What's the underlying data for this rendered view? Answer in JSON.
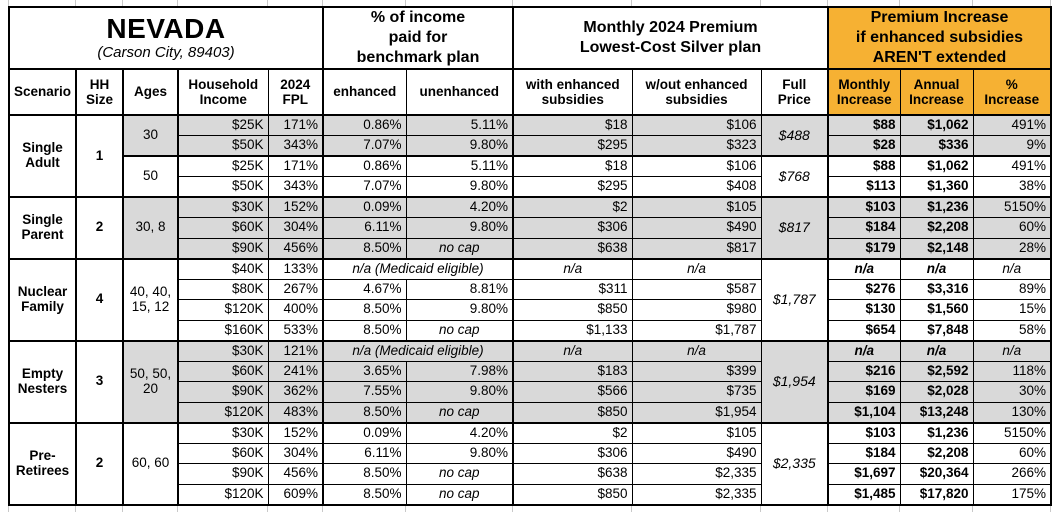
{
  "colors": {
    "accent_orange": "#F6B133",
    "shade_gray": "#D9D9D9"
  },
  "table": {
    "title": "NEVADA",
    "subtitle": "(Carson City, 89403)",
    "groups": {
      "income_pct": "% of income\npaid for\nbenchmark plan",
      "premium": "Monthly 2024 Premium\nLowest-Cost Silver plan",
      "increase": "Premium Increase\nif enhanced subsidies\nAREN'T extended"
    },
    "columns": {
      "scenario": "Scenario",
      "hh_size": "HH\nSize",
      "ages": "Ages",
      "income": "Household\nIncome",
      "fpl": "2024\nFPL",
      "enhanced": "enhanced",
      "unenhanced": "unenhanced",
      "with_sub": "with enhanced\nsubsidies",
      "wout_sub": "w/out enhanced\nsubsidies",
      "full_price": "Full\nPrice",
      "monthly": "Monthly\nIncrease",
      "annual": "Annual\nIncrease",
      "pct": "%\nIncrease"
    }
  },
  "scenarios": [
    {
      "name": "Single\nAdult",
      "hh": "1",
      "groups": [
        {
          "ages": "30",
          "full_price": "$488",
          "rows": [
            {
              "income": "$25K",
              "fpl": "171%",
              "enhanced": "0.86%",
              "unenhanced": "5.11%",
              "with_sub": "$18",
              "wout_sub": "$106",
              "monthly": "$88",
              "annual": "$1,062",
              "pct": "491%"
            },
            {
              "income": "$50K",
              "fpl": "343%",
              "enhanced": "7.07%",
              "unenhanced": "9.80%",
              "with_sub": "$295",
              "wout_sub": "$323",
              "monthly": "$28",
              "annual": "$336",
              "pct": "9%"
            }
          ]
        },
        {
          "ages": "50",
          "full_price": "$768",
          "rows": [
            {
              "income": "$25K",
              "fpl": "171%",
              "enhanced": "0.86%",
              "unenhanced": "5.11%",
              "with_sub": "$18",
              "wout_sub": "$106",
              "monthly": "$88",
              "annual": "$1,062",
              "pct": "491%"
            },
            {
              "income": "$50K",
              "fpl": "343%",
              "enhanced": "7.07%",
              "unenhanced": "9.80%",
              "with_sub": "$295",
              "wout_sub": "$408",
              "monthly": "$113",
              "annual": "$1,360",
              "pct": "38%"
            }
          ]
        }
      ]
    },
    {
      "name": "Single\nParent",
      "hh": "2",
      "groups": [
        {
          "ages": "30, 8",
          "full_price": "$817",
          "rows": [
            {
              "income": "$30K",
              "fpl": "152%",
              "enhanced": "0.09%",
              "unenhanced": "4.20%",
              "with_sub": "$2",
              "wout_sub": "$105",
              "monthly": "$103",
              "annual": "$1,236",
              "pct": "5150%"
            },
            {
              "income": "$60K",
              "fpl": "304%",
              "enhanced": "6.11%",
              "unenhanced": "9.80%",
              "with_sub": "$306",
              "wout_sub": "$490",
              "monthly": "$184",
              "annual": "$2,208",
              "pct": "60%"
            },
            {
              "income": "$90K",
              "fpl": "456%",
              "enhanced": "8.50%",
              "unenhanced": "no cap",
              "with_sub": "$638",
              "wout_sub": "$817",
              "monthly": "$179",
              "annual": "$2,148",
              "pct": "28%"
            }
          ]
        }
      ]
    },
    {
      "name": "Nuclear\nFamily",
      "hh": "4",
      "groups": [
        {
          "ages": "40, 40,\n15, 12",
          "full_price": "$1,787",
          "rows": [
            {
              "income": "$40K",
              "fpl": "133%",
              "medicaid": "n/a (Medicaid eligible)",
              "with_sub": "n/a",
              "wout_sub": "n/a",
              "monthly": "n/a",
              "annual": "n/a",
              "pct": "n/a"
            },
            {
              "income": "$80K",
              "fpl": "267%",
              "enhanced": "4.67%",
              "unenhanced": "8.81%",
              "with_sub": "$311",
              "wout_sub": "$587",
              "monthly": "$276",
              "annual": "$3,316",
              "pct": "89%"
            },
            {
              "income": "$120K",
              "fpl": "400%",
              "enhanced": "8.50%",
              "unenhanced": "9.80%",
              "with_sub": "$850",
              "wout_sub": "$980",
              "monthly": "$130",
              "annual": "$1,560",
              "pct": "15%"
            },
            {
              "income": "$160K",
              "fpl": "533%",
              "enhanced": "8.50%",
              "unenhanced": "no cap",
              "with_sub": "$1,133",
              "wout_sub": "$1,787",
              "monthly": "$654",
              "annual": "$7,848",
              "pct": "58%"
            }
          ]
        }
      ]
    },
    {
      "name": "Empty\nNesters",
      "hh": "3",
      "groups": [
        {
          "ages": "50, 50,\n20",
          "full_price": "$1,954",
          "rows": [
            {
              "income": "$30K",
              "fpl": "121%",
              "medicaid": "n/a (Medicaid eligible)",
              "with_sub": "n/a",
              "wout_sub": "n/a",
              "monthly": "n/a",
              "annual": "n/a",
              "pct": "n/a"
            },
            {
              "income": "$60K",
              "fpl": "241%",
              "enhanced": "3.65%",
              "unenhanced": "7.98%",
              "with_sub": "$183",
              "wout_sub": "$399",
              "monthly": "$216",
              "annual": "$2,592",
              "pct": "118%"
            },
            {
              "income": "$90K",
              "fpl": "362%",
              "enhanced": "7.55%",
              "unenhanced": "9.80%",
              "with_sub": "$566",
              "wout_sub": "$735",
              "monthly": "$169",
              "annual": "$2,028",
              "pct": "30%"
            },
            {
              "income": "$120K",
              "fpl": "483%",
              "enhanced": "8.50%",
              "unenhanced": "no cap",
              "with_sub": "$850",
              "wout_sub": "$1,954",
              "monthly": "$1,104",
              "annual": "$13,248",
              "pct": "130%"
            }
          ]
        }
      ]
    },
    {
      "name": "Pre-\nRetirees",
      "hh": "2",
      "groups": [
        {
          "ages": "60, 60",
          "full_price": "$2,335",
          "rows": [
            {
              "income": "$30K",
              "fpl": "152%",
              "enhanced": "0.09%",
              "unenhanced": "4.20%",
              "with_sub": "$2",
              "wout_sub": "$105",
              "monthly": "$103",
              "annual": "$1,236",
              "pct": "5150%"
            },
            {
              "income": "$60K",
              "fpl": "304%",
              "enhanced": "6.11%",
              "unenhanced": "9.80%",
              "with_sub": "$306",
              "wout_sub": "$490",
              "monthly": "$184",
              "annual": "$2,208",
              "pct": "60%"
            },
            {
              "income": "$90K",
              "fpl": "456%",
              "enhanced": "8.50%",
              "unenhanced": "no cap",
              "with_sub": "$638",
              "wout_sub": "$2,335",
              "monthly": "$1,697",
              "annual": "$20,364",
              "pct": "266%"
            },
            {
              "income": "$120K",
              "fpl": "609%",
              "enhanced": "8.50%",
              "unenhanced": "no cap",
              "with_sub": "$850",
              "wout_sub": "$2,335",
              "monthly": "$1,485",
              "annual": "$17,820",
              "pct": "175%"
            }
          ]
        }
      ]
    }
  ]
}
